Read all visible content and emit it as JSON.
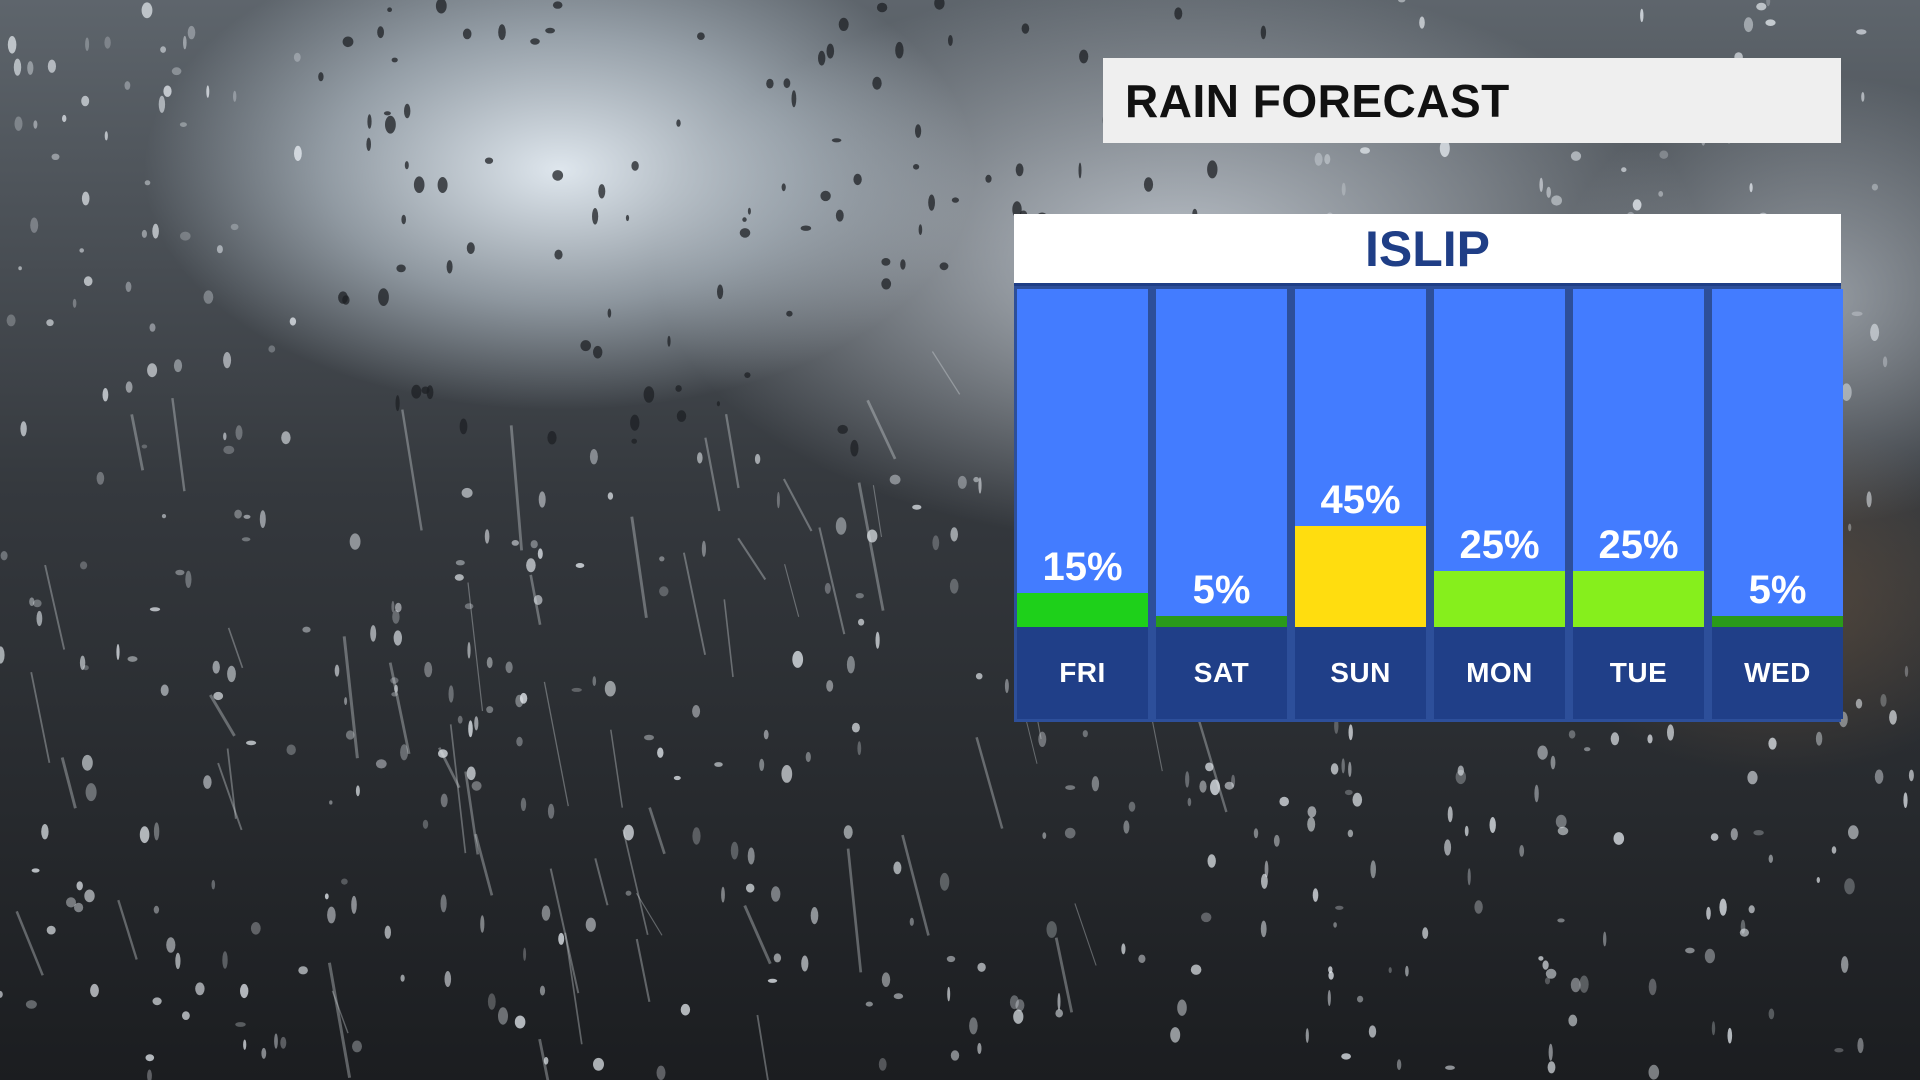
{
  "title": "RAIN FORECAST",
  "location": "ISLIP",
  "colors": {
    "column": "#437cff",
    "label_band": "#203f88",
    "header_text": "#1f3e86",
    "low": "#2a9a1a",
    "light": "#1ed01a",
    "moderate": "#86ef1c",
    "high": "#ffdd0f"
  },
  "chart_data": {
    "type": "bar",
    "categories": [
      "FRI",
      "SAT",
      "SUN",
      "MON",
      "TUE",
      "WED"
    ],
    "values": [
      15,
      5,
      45,
      25,
      25,
      5
    ],
    "value_labels": [
      "15%",
      "5%",
      "45%",
      "25%",
      "25%",
      "5%"
    ],
    "unit": "%",
    "bar_colors": [
      "#1ed01a",
      "#2a9a1a",
      "#ffdd0f",
      "#86ef1c",
      "#86ef1c",
      "#2a9a1a"
    ],
    "title": "RAIN FORECAST",
    "subtitle": "ISLIP",
    "ylim": [
      0,
      100
    ],
    "grid": false,
    "legend": "none"
  }
}
